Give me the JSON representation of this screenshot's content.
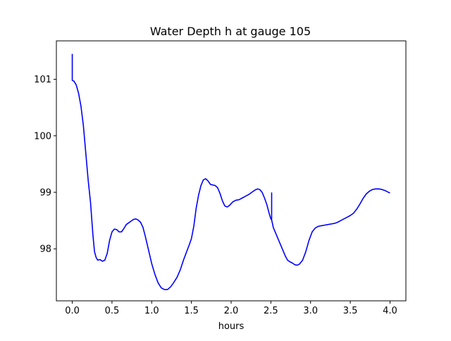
{
  "chart_data": {
    "type": "line",
    "title": "Water Depth h at gauge 105",
    "xlabel": "hours",
    "ylabel": "",
    "xlim": [
      -0.2,
      4.2
    ],
    "ylim": [
      97.08,
      101.68
    ],
    "xticks": [
      0.0,
      0.5,
      1.0,
      1.5,
      2.0,
      2.5,
      3.0,
      3.5,
      4.0
    ],
    "xtick_labels": [
      "0.0",
      "0.5",
      "1.0",
      "1.5",
      "2.0",
      "2.5",
      "3.0",
      "3.5",
      "4.0"
    ],
    "yticks": [
      98,
      99,
      100,
      101
    ],
    "ytick_labels": [
      "98",
      "99",
      "100",
      "101"
    ],
    "grid": false,
    "legend": "none",
    "colors": {
      "line": "#0000ff",
      "axes": "#000000",
      "background": "#ffffff"
    },
    "series": [
      {
        "x": [
          0.0,
          0.0,
          0.0,
          0.02,
          0.05,
          0.08,
          0.11,
          0.14,
          0.17,
          0.2,
          0.23,
          0.26,
          0.28,
          0.3,
          0.32,
          0.35,
          0.38,
          0.41,
          0.44,
          0.47,
          0.5,
          0.53,
          0.56,
          0.59,
          0.62,
          0.65,
          0.68,
          0.71,
          0.74,
          0.77,
          0.8,
          0.83,
          0.86,
          0.89,
          0.92,
          0.96,
          1.0,
          1.04,
          1.08,
          1.12,
          1.16,
          1.2,
          1.24,
          1.28,
          1.32,
          1.36,
          1.4,
          1.44,
          1.47,
          1.5,
          1.53,
          1.56,
          1.59,
          1.62,
          1.65,
          1.68,
          1.71,
          1.74,
          1.77,
          1.8,
          1.83,
          1.86,
          1.89,
          1.92,
          1.95,
          1.98,
          2.02,
          2.06,
          2.1,
          2.14,
          2.18,
          2.22,
          2.26,
          2.3,
          2.33,
          2.36,
          2.39,
          2.42,
          2.45,
          2.48,
          2.5,
          2.51,
          2.51,
          2.51,
          2.52,
          2.53,
          2.56,
          2.59,
          2.62,
          2.65,
          2.68,
          2.71,
          2.74,
          2.77,
          2.8,
          2.83,
          2.86,
          2.9,
          2.94,
          2.98,
          3.02,
          3.06,
          3.1,
          3.14,
          3.18,
          3.22,
          3.26,
          3.3,
          3.34,
          3.38,
          3.42,
          3.46,
          3.5,
          3.54,
          3.58,
          3.62,
          3.66,
          3.7,
          3.74,
          3.78,
          3.82,
          3.86,
          3.9,
          3.94,
          3.98,
          4.0
        ],
        "y": [
          101.45,
          101.0,
          100.98,
          100.97,
          100.9,
          100.75,
          100.52,
          100.18,
          99.7,
          99.22,
          98.82,
          98.25,
          97.95,
          97.85,
          97.8,
          97.81,
          97.78,
          97.8,
          97.92,
          98.15,
          98.3,
          98.35,
          98.34,
          98.3,
          98.3,
          98.36,
          98.43,
          98.46,
          98.49,
          98.52,
          98.53,
          98.51,
          98.47,
          98.38,
          98.22,
          97.98,
          97.74,
          97.55,
          97.4,
          97.31,
          97.28,
          97.28,
          97.33,
          97.41,
          97.5,
          97.63,
          97.8,
          97.95,
          98.06,
          98.18,
          98.4,
          98.72,
          98.95,
          99.12,
          99.22,
          99.24,
          99.2,
          99.14,
          99.13,
          99.12,
          99.08,
          98.98,
          98.85,
          98.76,
          98.74,
          98.77,
          98.83,
          98.86,
          98.87,
          98.9,
          98.93,
          98.96,
          99.0,
          99.04,
          99.06,
          99.05,
          99.0,
          98.9,
          98.78,
          98.62,
          98.53,
          98.51,
          98.99,
          98.51,
          98.45,
          98.38,
          98.28,
          98.18,
          98.08,
          97.98,
          97.88,
          97.8,
          97.77,
          97.75,
          97.72,
          97.71,
          97.73,
          97.8,
          97.95,
          98.15,
          98.3,
          98.37,
          98.4,
          98.41,
          98.42,
          98.43,
          98.44,
          98.45,
          98.47,
          98.5,
          98.53,
          98.56,
          98.59,
          98.63,
          98.7,
          98.79,
          98.89,
          98.97,
          99.02,
          99.05,
          99.06,
          99.06,
          99.05,
          99.03,
          99.0,
          98.99
        ]
      }
    ]
  }
}
